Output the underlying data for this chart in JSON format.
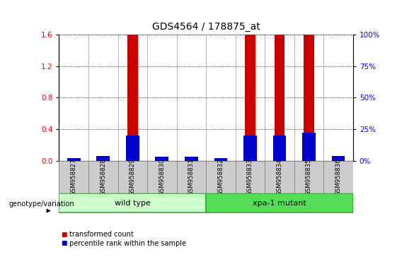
{
  "title": "GDS4564 / 178875_at",
  "samples": [
    "GSM958827",
    "GSM958828",
    "GSM958829",
    "GSM958830",
    "GSM958831",
    "GSM958832",
    "GSM958833",
    "GSM958834",
    "GSM958835",
    "GSM958836"
  ],
  "transformed_counts": [
    0.0,
    0.0,
    1.6,
    0.0,
    0.0,
    0.0,
    1.6,
    1.6,
    1.6,
    0.0
  ],
  "percentile_ranks_pct": [
    2,
    4,
    20,
    3,
    3,
    2,
    20,
    20,
    22,
    4
  ],
  "ylim_left": [
    0,
    1.6
  ],
  "ylim_right": [
    0,
    100
  ],
  "yticks_left": [
    0,
    0.4,
    0.8,
    1.2,
    1.6
  ],
  "yticks_right": [
    0,
    25,
    50,
    75,
    100
  ],
  "groups": [
    {
      "label": "wild type",
      "start": 0,
      "end": 4,
      "color": "#ccffcc"
    },
    {
      "label": "xpa-1 mutant",
      "start": 5,
      "end": 9,
      "color": "#55dd55"
    }
  ],
  "bar_color_red": "#cc0000",
  "bar_color_blue": "#0000cc",
  "red_bar_width": 0.35,
  "blue_bar_width": 0.45,
  "grid_color": "#000000",
  "bg_color": "#ffffff",
  "title_fontsize": 10,
  "tick_fontsize": 7.5,
  "label_fontsize": 8,
  "genotype_label": "genotype/variation",
  "legend_items": [
    {
      "color": "#cc0000",
      "label": "transformed count"
    },
    {
      "color": "#0000cc",
      "label": "percentile rank within the sample"
    }
  ]
}
